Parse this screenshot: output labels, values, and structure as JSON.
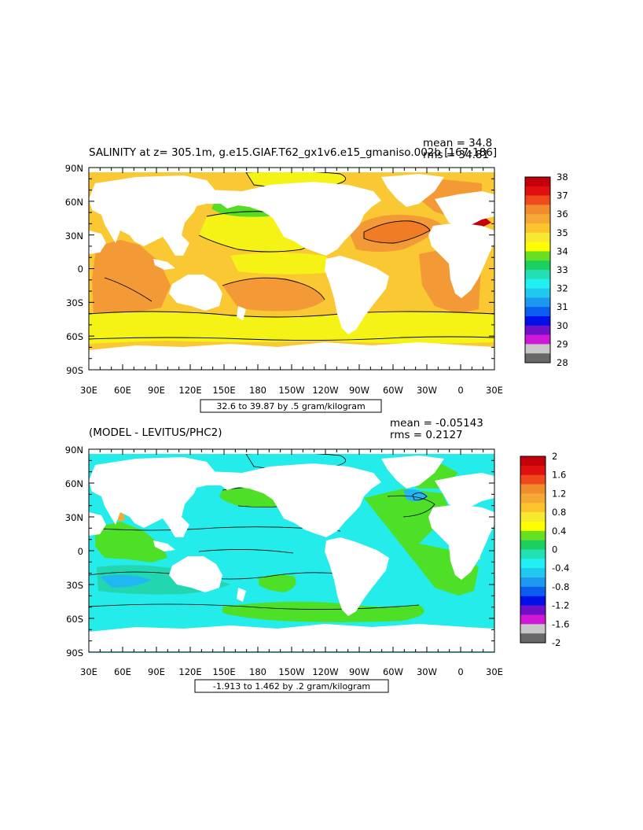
{
  "panel_top": {
    "title": "SALINITY at z= 305.1m, g.e15.GIAF.T62_gx1v6.e15_gmaniso.002b [167-186]",
    "mean_text": "mean = 34.8",
    "rms_text": "rms = 34.81",
    "range_text": "32.6 to 39.87 by .5 gram/kilogram",
    "colorbar": {
      "labels": [
        "38",
        "37",
        "36",
        "35",
        "34",
        "33",
        "32",
        "31",
        "30",
        "29",
        "28"
      ],
      "colors": [
        "#c4000a",
        "#e01010",
        "#f04a1c",
        "#f08c2c",
        "#f5a834",
        "#fbc42c",
        "#f7e830",
        "#ffff00",
        "#66e020",
        "#1cd060",
        "#22e0b4",
        "#20f0f4",
        "#20c8f0",
        "#1c98f0",
        "#0c5cf0",
        "#0010e8",
        "#7010c8",
        "#d018d8",
        "#c8c8c8",
        "#686868"
      ]
    }
  },
  "panel_bottom": {
    "title": "(MODEL - LEVITUS/PHC2)",
    "mean_text": "mean = -0.05143",
    "rms_text": "rms = 0.2127",
    "range_text": "-1.913 to 1.462 by .2 gram/kilogram",
    "colorbar": {
      "labels": [
        "2",
        "1.6",
        "1.2",
        "0.8",
        "0.4",
        "0",
        "-0.4",
        "-0.8",
        "-1.2",
        "-1.6",
        "-2"
      ],
      "colors": [
        "#c4000a",
        "#e01010",
        "#f04a1c",
        "#f08c2c",
        "#f5a834",
        "#fbc42c",
        "#f7e830",
        "#ffff00",
        "#66e020",
        "#1cd060",
        "#22e0b4",
        "#20f0f4",
        "#20c8f0",
        "#1c98f0",
        "#0c5cf0",
        "#0010e8",
        "#7010c8",
        "#d018d8",
        "#c8c8c8",
        "#686868"
      ]
    }
  },
  "axes": {
    "lat_labels": [
      "90N",
      "60N",
      "30N",
      "0",
      "30S",
      "60S",
      "90S"
    ],
    "lon_labels": [
      "30E",
      "60E",
      "90E",
      "120E",
      "150E",
      "180",
      "150W",
      "120W",
      "90W",
      "60W",
      "30W",
      "0",
      "30E"
    ]
  },
  "map_colors": {
    "land": "#ffffff",
    "top_base": "#f9c832",
    "top_high": "#f39a36",
    "top_higher": "#f07c26",
    "top_low": "#f5f216",
    "top_green": "#56dc24",
    "top_red": "#c4000a",
    "bottom_base": "#24ecea",
    "bottom_green": "#4ee026",
    "bottom_teal": "#22d6b0",
    "bottom_blue": "#20b8f2",
    "bottom_orange": "#f5a834",
    "bottom_yellow": "#f8f02c"
  }
}
